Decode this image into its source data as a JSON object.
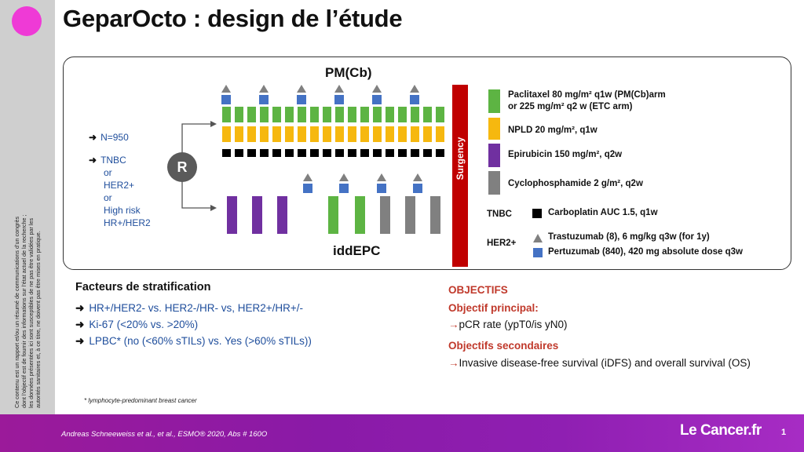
{
  "slide": {
    "title": "GeparOcto : design de l’étude",
    "page_number": "1"
  },
  "sidebar": {
    "disclaimer_lines": [
      "Ce contenu est un rapport et/ou un résumé de communications d’un congrès",
      "dont l’objectif est de fournir des informations sur l’état actuel de la recherche ;",
      "les données présentées ici sont susceptibles de ne pas être validées par les",
      "autorités sanitaires et, à ce titre, ne doivent pas être mises en pratique."
    ]
  },
  "design": {
    "arm_top_label": "PM(Cb)",
    "arm_bottom_label": "iddEPC",
    "randomization_label": "R",
    "surgery_label": "Surgency",
    "population": {
      "arrow": "➜",
      "n": "N=950",
      "criteria": [
        "TNBC",
        "or",
        "HER2+",
        "or",
        "High risk",
        "HR+/HER2"
      ]
    }
  },
  "legend": {
    "items": [
      {
        "color": "#5db443",
        "lines": [
          "Paclitaxel 80 mg/m² q1w (PM(Cb)arm",
          "or 225 mg/m² q2 w (ETC arm)"
        ]
      },
      {
        "color": "#f6b80f",
        "lines": [
          "NPLD 20 mg/m², q1w"
        ]
      },
      {
        "color": "#7030a0",
        "lines": [
          "Epirubicin 150 mg/m², q2w"
        ]
      },
      {
        "color": "#808080",
        "lines": [
          "Cyclophosphamide 2 g/m², q2w"
        ]
      }
    ],
    "tnbc_label": "TNBC",
    "tnbc_item": {
      "color": "#000000",
      "text": "Carboplatin AUC 1.5, q1w"
    },
    "her2_label": "HER2+",
    "her2_items": [
      {
        "shape": "triangle",
        "color": "#808080",
        "text": "Trastuzumab (8), 6 mg/kg q3w (for 1y)"
      },
      {
        "shape": "square",
        "color": "#4472c4",
        "text": "Pertuzumab (840), 420 mg absolute dose q3w"
      }
    ]
  },
  "stratification": {
    "title": "Facteurs de stratification",
    "arrow": "➜",
    "items": [
      "HR+/HER2- vs. HER2-/HR- vs, HER2+/HR+/-",
      "Ki-67  (<20% vs. >20%)",
      "LPBC*  (no (<60% sTILs) vs. Yes (>60% sTILs))"
    ],
    "footnote": "* lymphocyte-predominant breast cancer"
  },
  "objectives": {
    "heading": "OBJECTIFS",
    "primary_title": "Objectif principal:",
    "primary_arrow": "→",
    "primary_text": "pCR rate (ypT0/is yN0)",
    "secondary_title": "Objectifs secondaires",
    "secondary_arrow": "→",
    "secondary_text": "Invasive disease-free survival (iDFS) and overall survival (OS)"
  },
  "footer": {
    "citation": "Andreas Schneeweiss et al., et al., ESMO® 2020, Abs # 160O",
    "logo": "Le Cancer.fr"
  },
  "colors": {
    "paclitaxel": "#5db443",
    "npld": "#f6b80f",
    "epirubicin": "#7030a0",
    "cyclophosphamide": "#808080",
    "carboplatin": "#000000",
    "pertuzumab": "#4472c4",
    "trastuzumab": "#808080",
    "surgery": "#c00000",
    "accent_pink": "#ef3ad6",
    "footer_purple": "#8a1aa7",
    "objective_red": "#c0392b",
    "text_blue": "#1f4e9c"
  }
}
